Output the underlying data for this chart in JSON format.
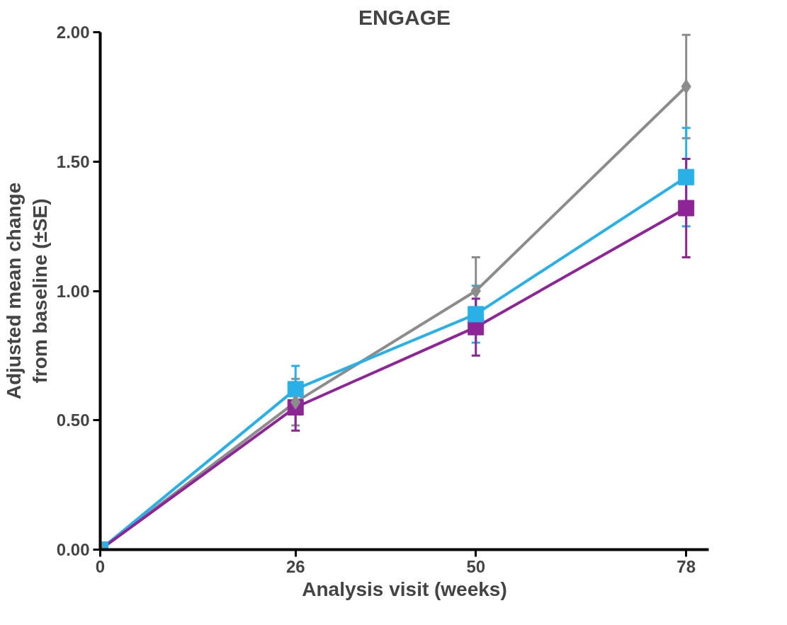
{
  "chart_data": {
    "type": "line",
    "title": "ENGAGE",
    "xlabel": "Analysis visit (weeks)",
    "ylabel": "Adjusted mean change\nfrom baseline (±SE)",
    "x": [
      0,
      26,
      50,
      78
    ],
    "xlim": [
      0,
      81
    ],
    "xticks": [
      0,
      26,
      50,
      78
    ],
    "ylim": [
      0,
      2.0
    ],
    "yticks": [
      {
        "value": 0,
        "label": "0.00"
      },
      {
        "value": 0.5,
        "label": "0.50"
      },
      {
        "value": 1,
        "label": "1.00"
      },
      {
        "value": 1.5,
        "label": "1.50"
      },
      {
        "value": 2,
        "label": "2.00"
      }
    ],
    "grid": false,
    "series": [
      {
        "color": "#8c8c8c",
        "marker": "diamond",
        "values": [
          0,
          0.57,
          1.0,
          1.79
        ],
        "errors": [
          null,
          0.09,
          0.13,
          0.2
        ]
      },
      {
        "color": "#29b0e6",
        "marker": "square",
        "values": [
          0,
          0.62,
          0.91,
          1.44
        ],
        "errors": [
          null,
          0.09,
          0.11,
          0.19
        ]
      },
      {
        "color": "#8e2596",
        "marker": "square",
        "values": [
          0,
          0.55,
          0.86,
          1.32
        ],
        "errors": [
          null,
          0.09,
          0.11,
          0.19
        ]
      }
    ]
  }
}
